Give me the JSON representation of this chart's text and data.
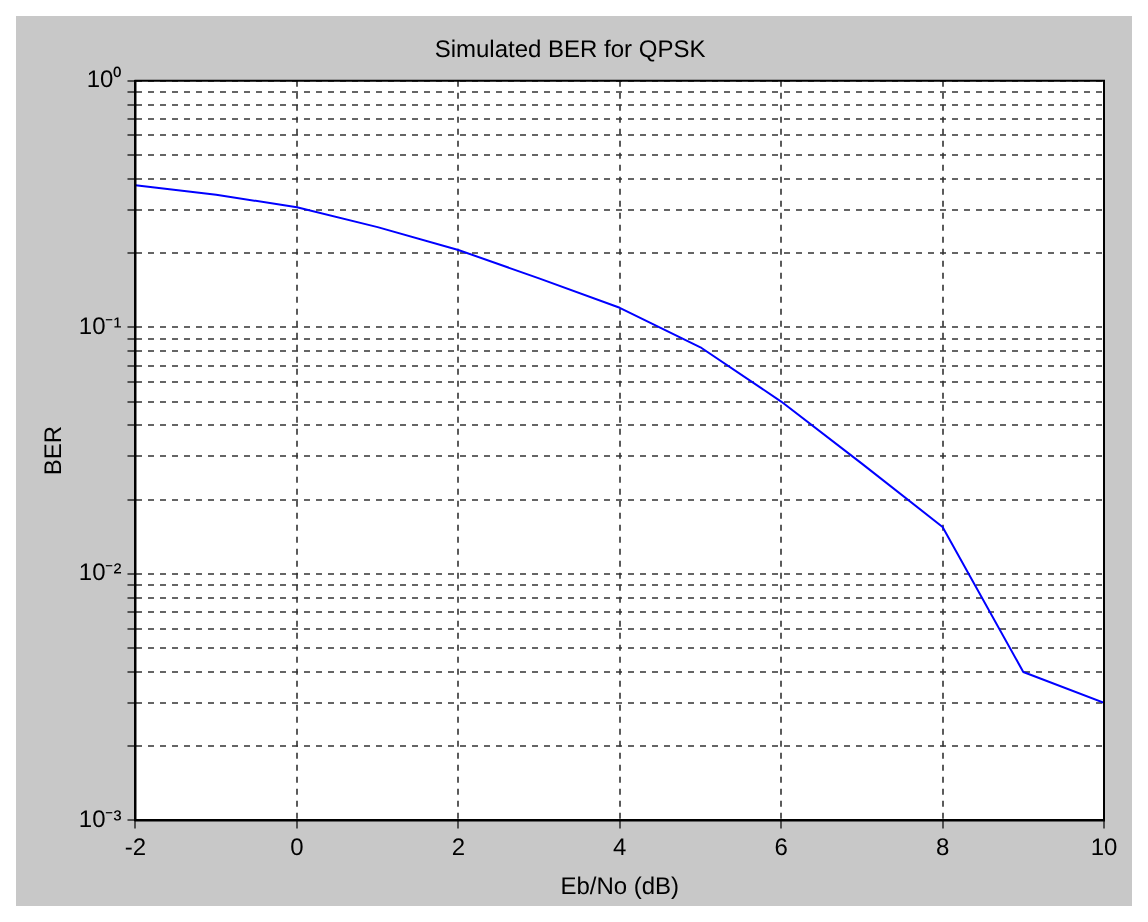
{
  "chart_data": {
    "type": "line",
    "title": "Simulated BER for QPSK",
    "xlabel": "Eb/No (dB)",
    "ylabel": "BER",
    "x": [
      -2,
      -1,
      0,
      1,
      2,
      3,
      4,
      5,
      6,
      7,
      8,
      9,
      10
    ],
    "series": [
      {
        "color": "#0000ff",
        "values": [
          0.377,
          0.345,
          0.307,
          0.255,
          0.206,
          0.158,
          0.12,
          0.083,
          0.05,
          0.028,
          0.0155,
          0.004,
          0.003
        ]
      }
    ],
    "xlim": [
      -2,
      10
    ],
    "xticks": [
      -2,
      0,
      2,
      4,
      6,
      8,
      10
    ],
    "ylim": [
      0.001,
      1
    ],
    "yticks": [
      {
        "value": 0.001,
        "label": "10⁻³"
      },
      {
        "value": 0.002,
        "label": null
      },
      {
        "value": 0.003,
        "label": null
      },
      {
        "value": 0.004,
        "label": null
      },
      {
        "value": 0.005,
        "label": null
      },
      {
        "value": 0.006,
        "label": null
      },
      {
        "value": 0.007,
        "label": null
      },
      {
        "value": 0.008,
        "label": null
      },
      {
        "value": 0.009,
        "label": null
      },
      {
        "value": 0.01,
        "label": "10⁻²"
      },
      {
        "value": 0.02,
        "label": null
      },
      {
        "value": 0.03,
        "label": null
      },
      {
        "value": 0.04,
        "label": null
      },
      {
        "value": 0.05,
        "label": null
      },
      {
        "value": 0.06,
        "label": null
      },
      {
        "value": 0.07,
        "label": null
      },
      {
        "value": 0.08,
        "label": null
      },
      {
        "value": 0.09,
        "label": null
      },
      {
        "value": 0.1,
        "label": "10⁻¹"
      },
      {
        "value": 0.2,
        "label": null
      },
      {
        "value": 0.3,
        "label": null
      },
      {
        "value": 0.4,
        "label": null
      },
      {
        "value": 0.5,
        "label": null
      },
      {
        "value": 0.6,
        "label": null
      },
      {
        "value": 0.7,
        "label": null
      },
      {
        "value": 0.8,
        "label": null
      },
      {
        "value": 0.9,
        "label": null
      },
      {
        "value": 1,
        "label": "10⁰"
      }
    ],
    "log": "y",
    "grid": true,
    "legend": false,
    "marker": "none",
    "line_style": "solid"
  }
}
